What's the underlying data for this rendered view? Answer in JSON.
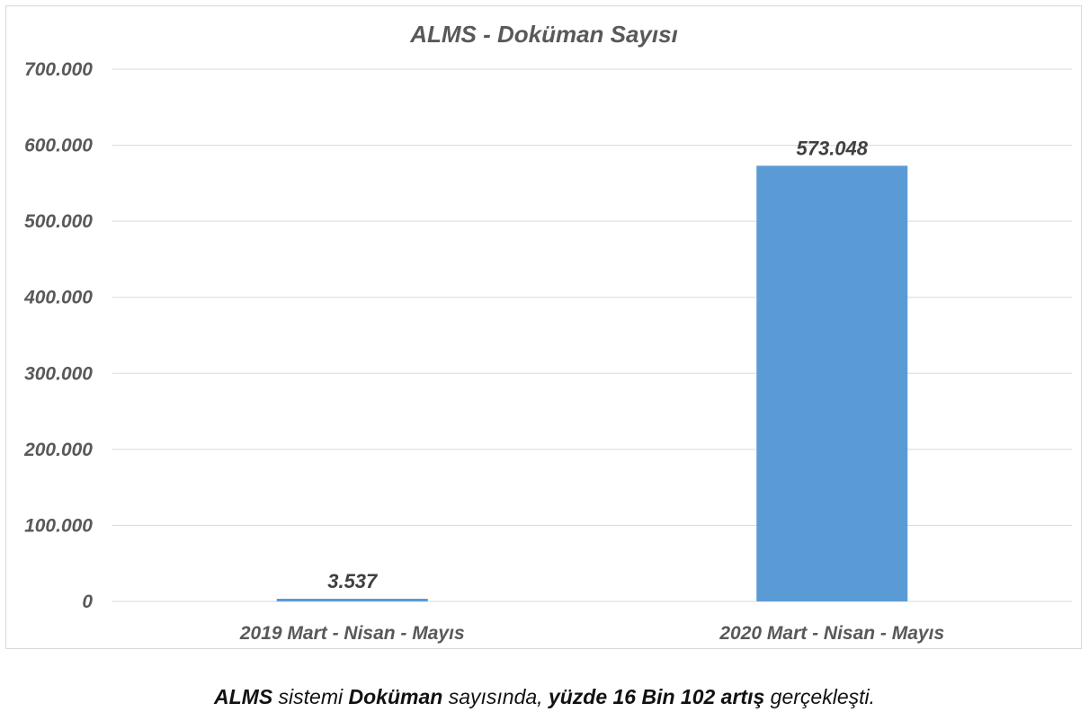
{
  "chart_data": {
    "type": "bar",
    "title": "ALMS - Doküman Sayısı",
    "categories": [
      "2019 Mart - Nisan - Mayıs",
      "2020 Mart - Nisan - Mayıs"
    ],
    "values": [
      3537,
      573048
    ],
    "data_labels": [
      "3.537",
      "573.048"
    ],
    "ylim": [
      0,
      700000
    ],
    "yticks": [
      0,
      100000,
      200000,
      300000,
      400000,
      500000,
      600000,
      700000
    ],
    "ytick_labels": [
      "0",
      "100.000",
      "200.000",
      "300.000",
      "400.000",
      "500.000",
      "600.000",
      "700.000"
    ],
    "grid": true,
    "bar_color": "#5b9bd5"
  },
  "caption": {
    "part1": "ALMS",
    "part2": " sistemi ",
    "part3": "Doküman",
    "part4": " sayısında, ",
    "part5": "yüzde 16 Bin 102 artış",
    "part6": " gerçekleşti."
  }
}
